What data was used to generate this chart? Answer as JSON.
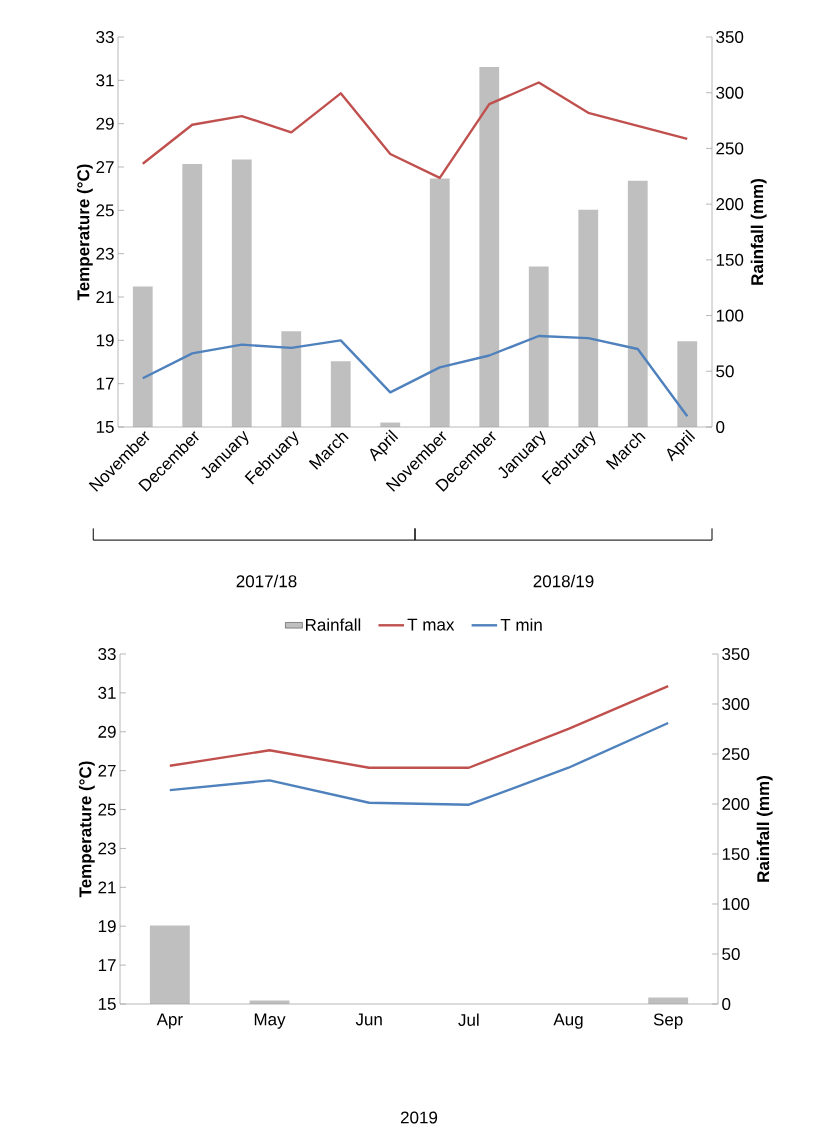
{
  "chart_data": [
    {
      "type": "line",
      "categories": [
        "November",
        "December",
        "January",
        "February",
        "March",
        "April",
        "November",
        "December",
        "January",
        "February",
        "March",
        "April"
      ],
      "ylabel": "Temperature (°C)",
      "y2label": "Rainfall (mm)",
      "ylim": [
        15,
        33
      ],
      "yticks": [
        15,
        17,
        19,
        21,
        23,
        25,
        27,
        29,
        31,
        33
      ],
      "y2lim": [
        0,
        350
      ],
      "y2ticks": [
        0,
        50,
        100,
        150,
        200,
        250,
        300,
        350
      ],
      "legend": "bottom",
      "annotations": [
        "2017/18",
        "2018/19"
      ],
      "series": [
        {
          "name": "Rainfall",
          "type": "bar",
          "axis": "y2",
          "color": "#bfbfbf",
          "values": [
            126,
            236,
            240,
            86,
            59,
            4,
            223,
            323,
            144,
            195,
            221,
            77
          ]
        },
        {
          "name": "T max",
          "color": "#c0504d",
          "values": [
            27.15,
            28.95,
            29.35,
            28.6,
            30.4,
            27.6,
            26.5,
            29.9,
            30.9,
            29.5,
            28.9,
            28.3
          ]
        },
        {
          "name": "T min",
          "color": "#4f81bd",
          "values": [
            17.25,
            18.4,
            18.8,
            18.65,
            19.0,
            16.6,
            17.75,
            18.3,
            19.2,
            19.1,
            18.6,
            15.5
          ]
        }
      ]
    },
    {
      "type": "line",
      "categories": [
        "Apr",
        "May",
        "Jun",
        "Jul",
        "Aug",
        "Sep"
      ],
      "xlabel": "2019",
      "ylabel": "Temperature (°C)",
      "y2label": "Rainfall (mm)",
      "ylim": [
        15,
        33
      ],
      "yticks": [
        15,
        17,
        19,
        21,
        23,
        25,
        27,
        29,
        31,
        33
      ],
      "y2lim": [
        0,
        350
      ],
      "y2ticks": [
        0,
        50,
        100,
        150,
        200,
        250,
        300,
        350
      ],
      "series": [
        {
          "type": "bar",
          "axis": "y2",
          "color": "#bfbfbf",
          "values": [
            78.5,
            3.5,
            0,
            0,
            0,
            6.5
          ]
        },
        {
          "color": "#c0504d",
          "values": [
            27.25,
            28.05,
            27.15,
            27.15,
            29.15,
            31.35
          ]
        },
        {
          "color": "#4f81bd",
          "values": [
            26.0,
            26.5,
            25.35,
            25.25,
            27.15,
            29.45
          ]
        }
      ]
    }
  ]
}
